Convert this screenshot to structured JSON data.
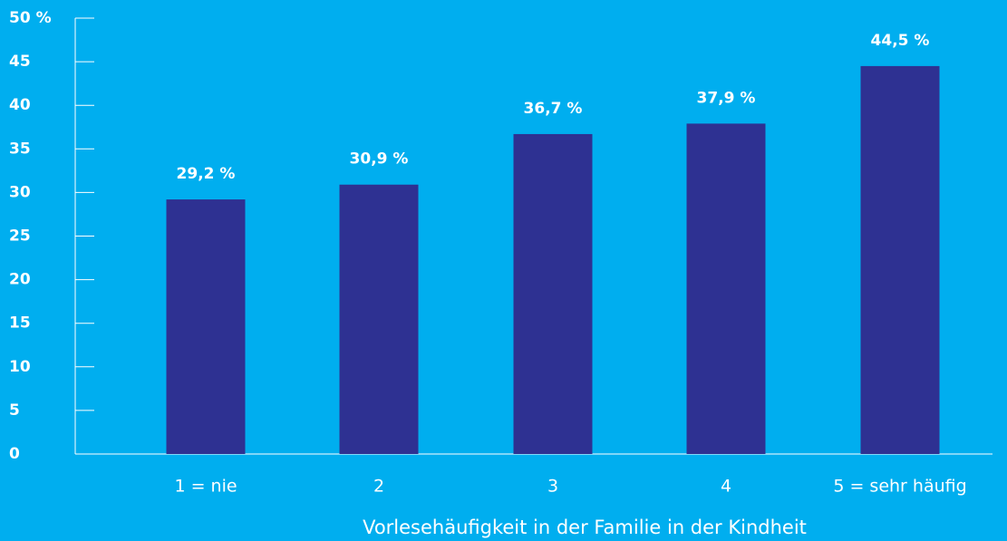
{
  "chart_data": {
    "type": "bar",
    "categories": [
      "1 = nie",
      "2",
      "3",
      "4",
      "5 = sehr häufig"
    ],
    "values": [
      29.2,
      30.9,
      36.7,
      37.9,
      44.5
    ],
    "value_labels": [
      "29,2 %",
      "30,9 %",
      "36,7 %",
      "37,9 %",
      "44,5 %"
    ],
    "color": "#2e3192",
    "x_label": "Vorlesehäufigkeit in der Familie in der Kindheit",
    "ylim": [
      0,
      50
    ],
    "yticks": [
      0,
      5,
      10,
      15,
      20,
      25,
      30,
      35,
      40,
      45,
      {
        "value": 50,
        "label": "50 %"
      }
    ]
  }
}
